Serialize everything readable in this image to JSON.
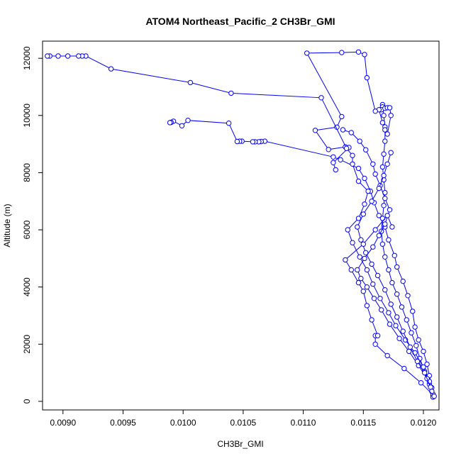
{
  "chart_data": {
    "type": "line",
    "title": "ATOM4 Northeast_Pacific_2 CH3Br_GMI",
    "xlabel": "CH3Br_GMI",
    "ylabel": "Altitude (m)",
    "xlim": [
      0.00883,
      0.01213
    ],
    "ylim": [
      -300,
      12600
    ],
    "x_ticks": [
      0.009,
      0.0095,
      0.01,
      0.0105,
      0.011,
      0.0115,
      0.012
    ],
    "x_tick_labels": [
      "0.0090",
      "0.0095",
      "0.0100",
      "0.0105",
      "0.0110",
      "0.0115",
      "0.0120"
    ],
    "y_ticks": [
      0,
      2000,
      4000,
      6000,
      8000,
      10000,
      12000
    ],
    "y_tick_labels": [
      "0",
      "2000",
      "4000",
      "6000",
      "8000",
      "10000",
      "12000"
    ],
    "grid": false,
    "legend": "none",
    "line_color": "#0000ff",
    "marker": "open-circle",
    "series": [
      {
        "points": [
          [
            0.01208,
            200
          ],
          [
            0.01207,
            480
          ],
          [
            0.01205,
            900
          ],
          [
            0.01203,
            1300
          ],
          [
            0.012,
            1750
          ],
          [
            0.01196,
            2150
          ],
          [
            0.01193,
            2600
          ],
          [
            0.01191,
            3150
          ],
          [
            0.01187,
            3700
          ],
          [
            0.01183,
            4200
          ],
          [
            0.01178,
            4700
          ],
          [
            0.01176,
            5100
          ],
          [
            0.01171,
            5650
          ],
          [
            0.01168,
            6100
          ],
          [
            0.01163,
            6500
          ],
          [
            0.01159,
            6950
          ],
          [
            0.01156,
            7350
          ],
          [
            0.01151,
            7800
          ],
          [
            0.01146,
            8150
          ],
          [
            0.01131,
            8450
          ],
          [
            0.01125,
            8550
          ],
          [
            0.01068,
            9100
          ],
          [
            0.01065,
            9090
          ],
          [
            0.01063,
            9080
          ],
          [
            0.0106,
            9080
          ],
          [
            0.01058,
            9080
          ],
          [
            0.01049,
            9100
          ],
          [
            0.01047,
            9100
          ],
          [
            0.01045,
            9090
          ],
          [
            0.01038,
            9730
          ],
          [
            0.01004,
            9830
          ],
          [
            0.00999,
            9640
          ],
          [
            0.00992,
            9800
          ],
          [
            0.0099,
            9760
          ],
          [
            0.00989,
            9750
          ]
        ]
      },
      {
        "points": [
          [
            0.01208,
            150
          ],
          [
            0.01205,
            600
          ],
          [
            0.01201,
            1050
          ],
          [
            0.01197,
            1500
          ],
          [
            0.01194,
            1950
          ],
          [
            0.0119,
            2400
          ],
          [
            0.01186,
            2850
          ],
          [
            0.01182,
            3300
          ],
          [
            0.01178,
            3750
          ],
          [
            0.01174,
            4150
          ],
          [
            0.01171,
            4600
          ],
          [
            0.01168,
            5050
          ],
          [
            0.01166,
            5500
          ],
          [
            0.01165,
            5950
          ],
          [
            0.01166,
            6400
          ],
          [
            0.01167,
            6850
          ],
          [
            0.01168,
            7300
          ],
          [
            0.01167,
            7750
          ],
          [
            0.01166,
            8200
          ],
          [
            0.01167,
            8650
          ],
          [
            0.01168,
            9100
          ],
          [
            0.01168,
            9600
          ],
          [
            0.01167,
            10000
          ],
          [
            0.01166,
            10380
          ],
          [
            0.01166,
            10300
          ],
          [
            0.01165,
            10200
          ],
          [
            0.01168,
            10250
          ],
          [
            0.0117,
            10270
          ],
          [
            0.01172,
            10270
          ],
          [
            0.01173,
            10000
          ],
          [
            0.0117,
            9350
          ],
          [
            0.01168,
            9500
          ],
          [
            0.01166,
            9750
          ],
          [
            0.01163,
            10200
          ],
          [
            0.0116,
            10150
          ],
          [
            0.01153,
            11320
          ],
          [
            0.01151,
            12130
          ],
          [
            0.01146,
            12220
          ],
          [
            0.01132,
            12200
          ],
          [
            0.01103,
            12180
          ],
          [
            0.01132,
            9960
          ],
          [
            0.01128,
            9590
          ],
          [
            0.0111,
            9480
          ],
          [
            0.01121,
            8810
          ],
          [
            0.01135,
            8900
          ],
          [
            0.01138,
            8880
          ],
          [
            0.01125,
            8350
          ],
          [
            0.01127,
            8100
          ]
        ]
      },
      {
        "points": [
          [
            0.01208,
            250
          ],
          [
            0.01205,
            700
          ],
          [
            0.012,
            1200
          ],
          [
            0.01193,
            1700
          ],
          [
            0.01185,
            2150
          ],
          [
            0.01177,
            2650
          ],
          [
            0.01171,
            3100
          ],
          [
            0.01164,
            3600
          ],
          [
            0.01158,
            4100
          ],
          [
            0.01153,
            4600
          ],
          [
            0.01147,
            5050
          ],
          [
            0.01141,
            5550
          ],
          [
            0.01137,
            6000
          ],
          [
            0.01146,
            6400
          ],
          [
            0.01151,
            6900
          ],
          [
            0.01154,
            7350
          ],
          [
            0.01146,
            7700
          ],
          [
            0.01141,
            8300
          ],
          [
            0.01141,
            8600
          ],
          [
            0.01136,
            8850
          ],
          [
            0.01115,
            10620
          ],
          [
            0.0104,
            10780
          ],
          [
            0.01006,
            11150
          ],
          [
            0.0094,
            11630
          ],
          [
            0.00919,
            12080
          ],
          [
            0.00916,
            12080
          ],
          [
            0.00913,
            12080
          ],
          [
            0.00904,
            12080
          ],
          [
            0.00896,
            12080
          ],
          [
            0.00889,
            12080
          ],
          [
            0.00887,
            12080
          ]
        ]
      },
      {
        "points": [
          [
            0.01207,
            350
          ],
          [
            0.01203,
            800
          ],
          [
            0.01196,
            1250
          ],
          [
            0.01188,
            1750
          ],
          [
            0.0118,
            2200
          ],
          [
            0.01172,
            2700
          ],
          [
            0.01165,
            3200
          ],
          [
            0.01159,
            3600
          ],
          [
            0.01153,
            4000
          ],
          [
            0.01148,
            4300
          ],
          [
            0.01145,
            4600
          ],
          [
            0.01151,
            5000
          ],
          [
            0.01158,
            5400
          ],
          [
            0.01163,
            5800
          ],
          [
            0.01168,
            6200
          ],
          [
            0.01172,
            6700
          ],
          [
            0.01168,
            7100
          ],
          [
            0.01164,
            7550
          ],
          [
            0.0116,
            7950
          ],
          [
            0.01158,
            8300
          ],
          [
            0.01152,
            8800
          ],
          [
            0.01147,
            9100
          ],
          [
            0.0114,
            9400
          ],
          [
            0.01133,
            9500
          ]
        ]
      },
      {
        "points": [
          [
            0.01206,
            500
          ],
          [
            0.01201,
            1000
          ],
          [
            0.01195,
            1400
          ],
          [
            0.01189,
            1900
          ],
          [
            0.01183,
            2450
          ],
          [
            0.01178,
            2950
          ],
          [
            0.01173,
            3400
          ],
          [
            0.01168,
            3900
          ],
          [
            0.01162,
            4400
          ],
          [
            0.01157,
            4800
          ],
          [
            0.01152,
            5200
          ],
          [
            0.01148,
            5650
          ],
          [
            0.01145,
            6100
          ],
          [
            0.0115,
            6550
          ],
          [
            0.01157,
            7000
          ],
          [
            0.01163,
            7450
          ],
          [
            0.01167,
            7900
          ],
          [
            0.0117,
            8300
          ],
          [
            0.01173,
            8700
          ]
        ]
      },
      {
        "points": [
          [
            0.01209,
            180
          ],
          [
            0.01198,
            650
          ],
          [
            0.01184,
            1150
          ],
          [
            0.0117,
            1600
          ],
          [
            0.0116,
            2000
          ],
          [
            0.0116,
            2300
          ],
          [
            0.01162,
            2300
          ],
          [
            0.01157,
            2850
          ],
          [
            0.01153,
            3350
          ],
          [
            0.0115,
            3850
          ],
          [
            0.01146,
            4150
          ],
          [
            0.0114,
            4600
          ],
          [
            0.01135,
            4950
          ],
          [
            0.0115,
            5500
          ],
          [
            0.0116,
            6000
          ],
          [
            0.0117,
            6500
          ],
          [
            0.01174,
            6100
          ]
        ]
      }
    ]
  }
}
